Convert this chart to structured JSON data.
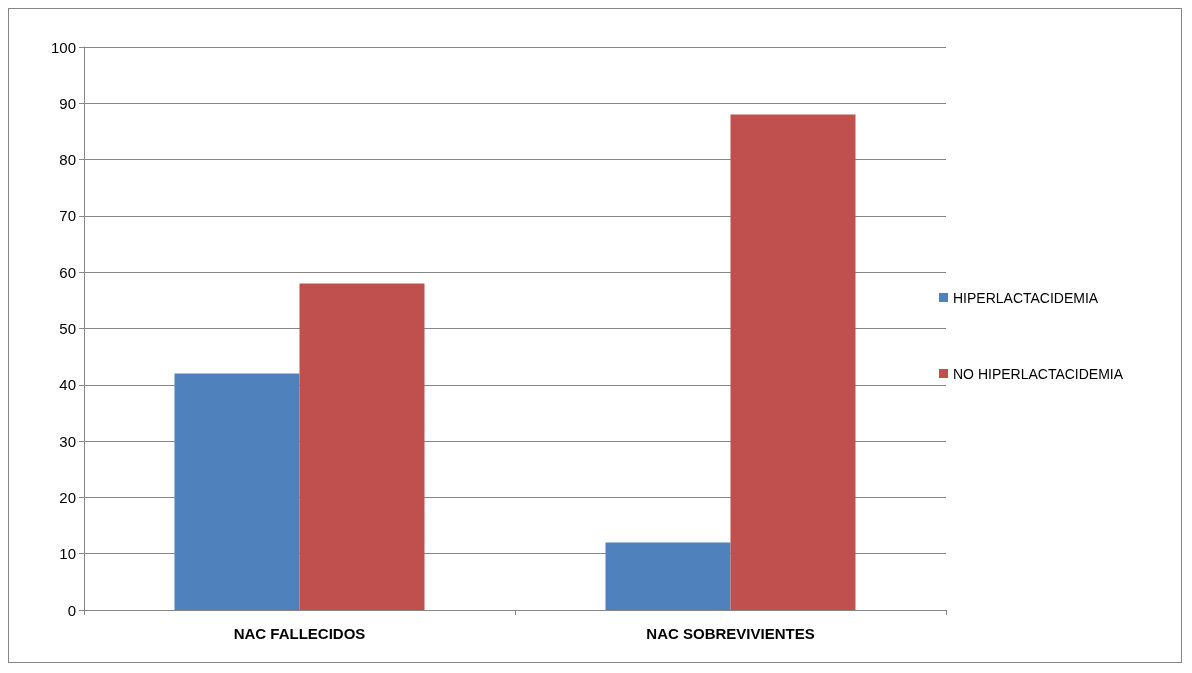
{
  "chart_data": {
    "type": "bar",
    "categories": [
      "NAC FALLECIDOS",
      "NAC SOBREVIVIENTES"
    ],
    "series": [
      {
        "name": "HIPERLACTACIDEMIA",
        "color": "#4f81bd",
        "values": [
          42,
          12
        ]
      },
      {
        "name": "NO HIPERLACTACIDEMIA",
        "color": "#c0504d",
        "values": [
          58,
          88
        ]
      }
    ],
    "ylim": [
      0,
      100
    ],
    "yticks": [
      0,
      10,
      20,
      30,
      40,
      50,
      60,
      70,
      80,
      90,
      100
    ],
    "grid": "y",
    "legend": "right"
  }
}
